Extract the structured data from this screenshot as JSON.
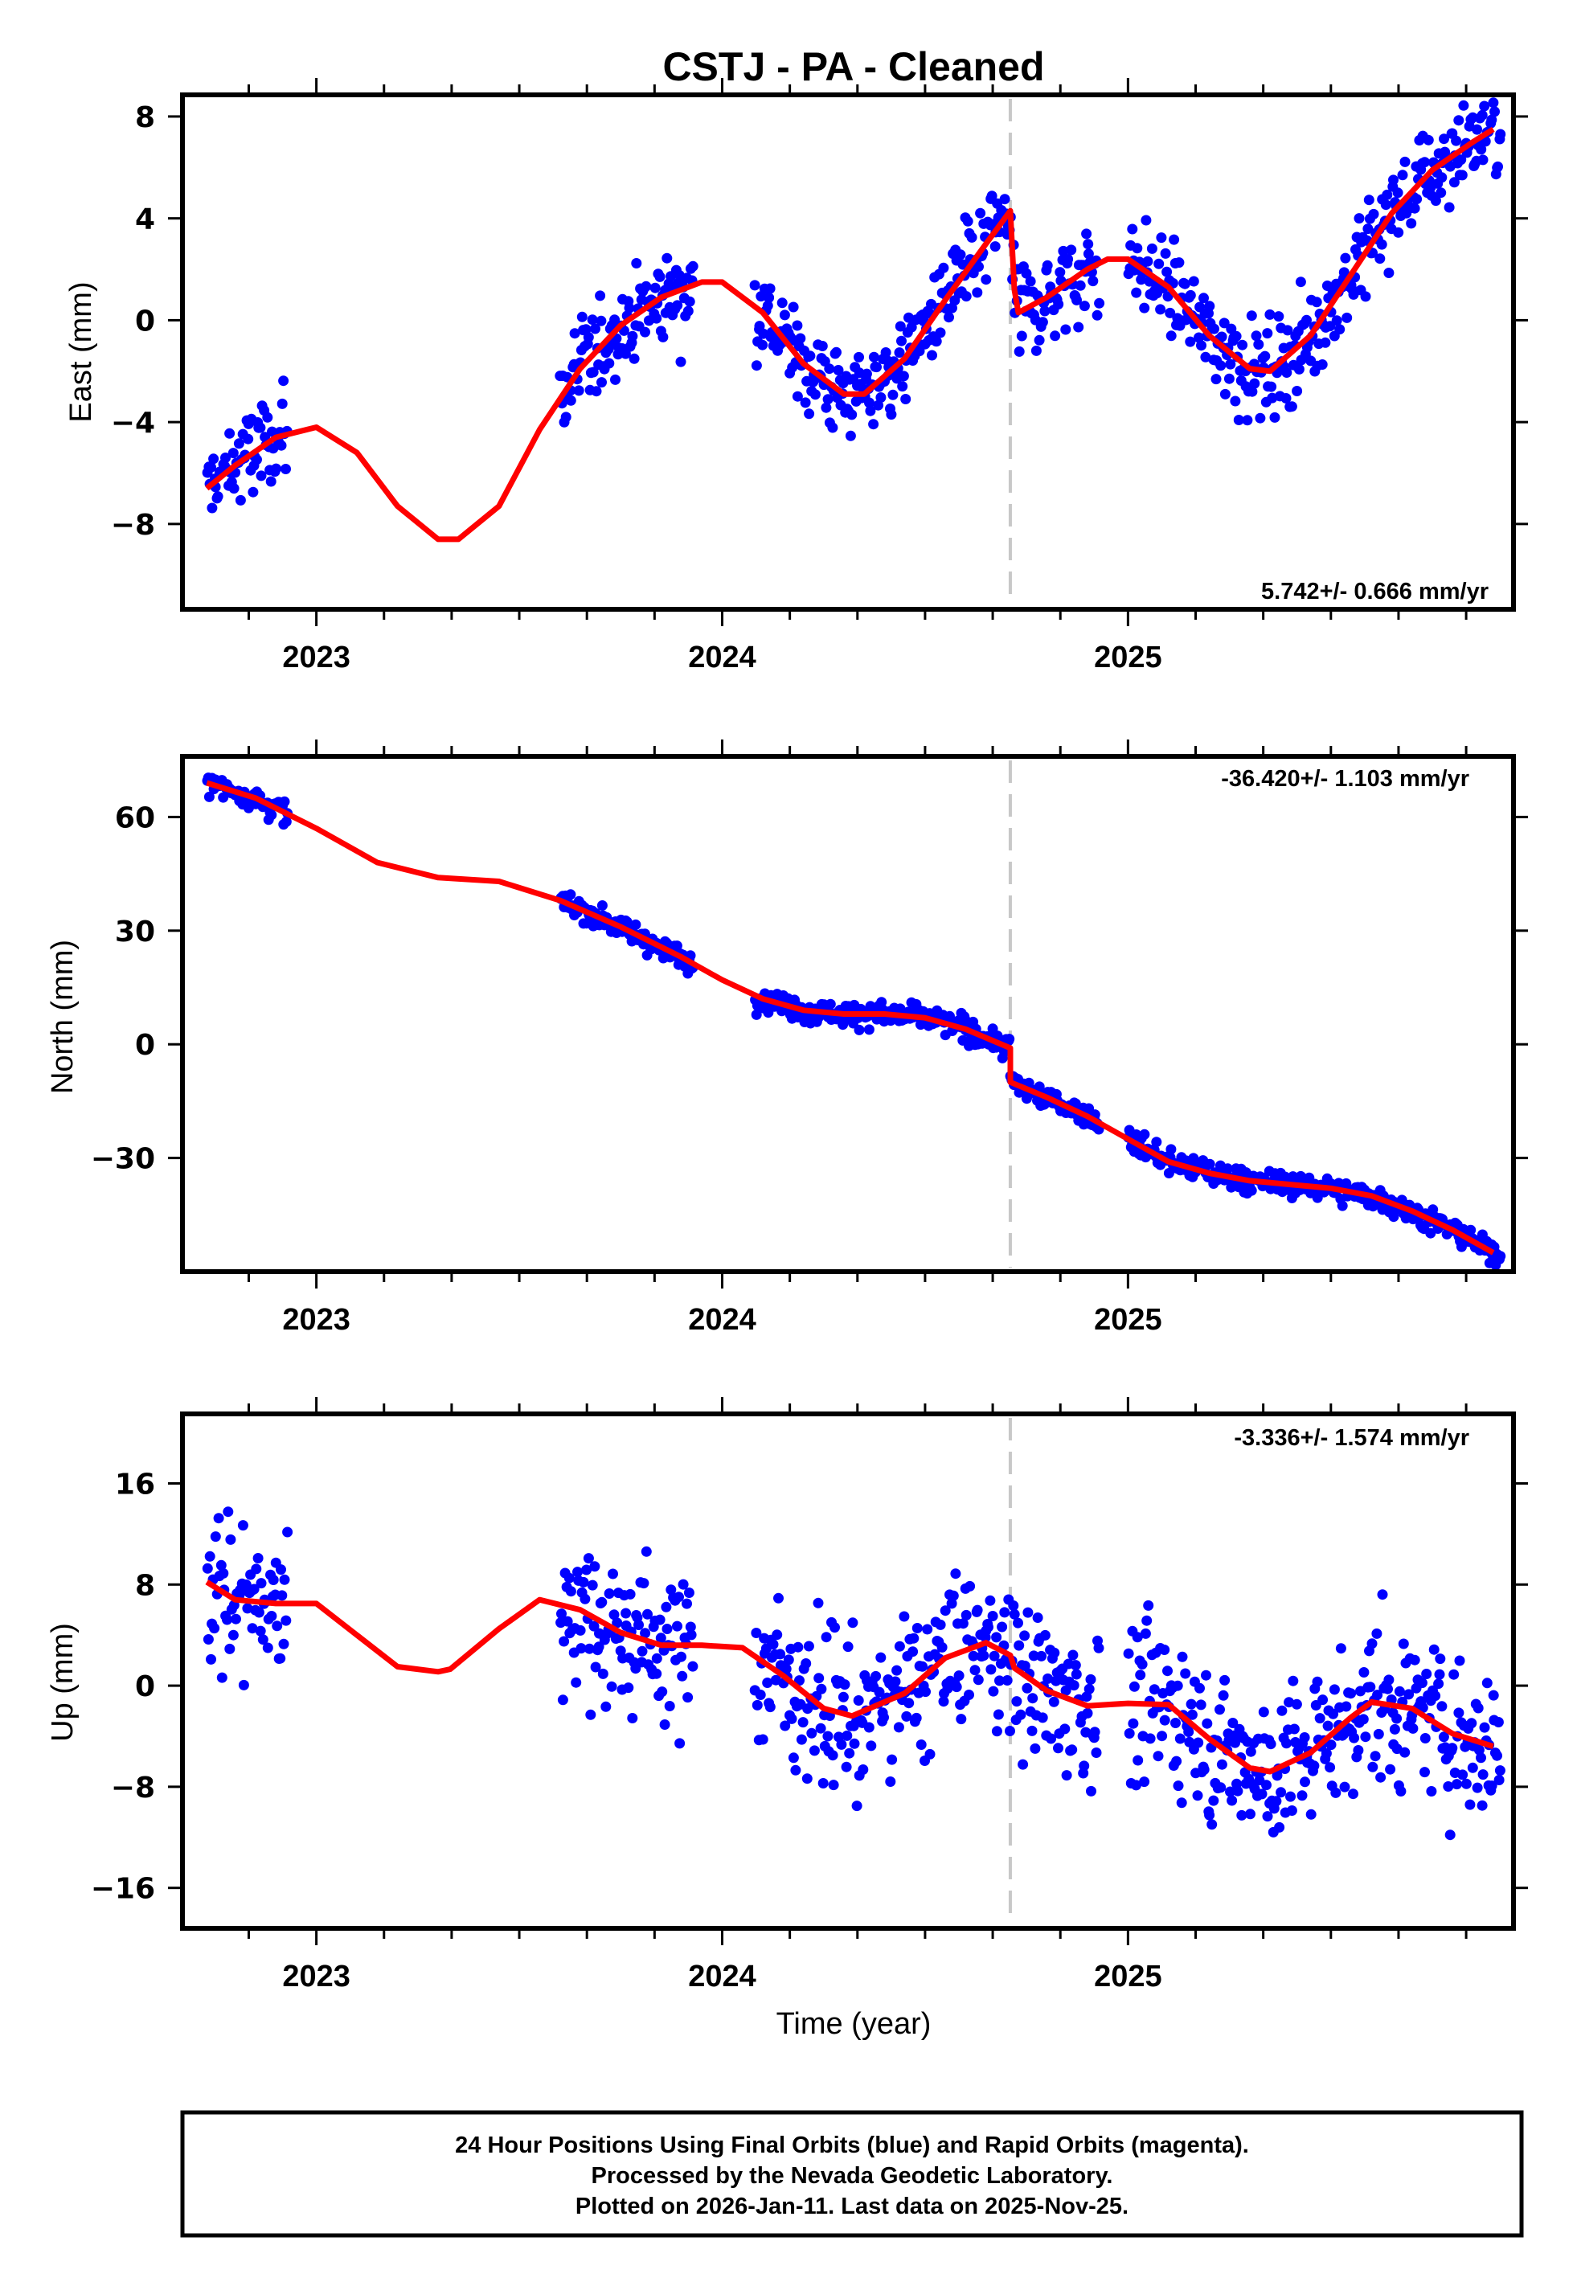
{
  "title": "CSTJ  - PA - Cleaned",
  "colors": {
    "final_orbits": "#0000ff",
    "model_fit": "#ff0000",
    "event_line": "#c8c8c8",
    "frame": "#000000"
  },
  "footer": {
    "lines": [
      "24 Hour Positions Using Final Orbits (blue) and Rapid Orbits (magenta).",
      "Processed by the Nevada Geodetic Laboratory.",
      "Plotted on 2026-Jan-11. Last data on 2025-Nov-25."
    ]
  },
  "chart_data": [
    {
      "type": "scatter",
      "component": "east",
      "ylabel": "East (mm)",
      "xlabel": "",
      "xlim": [
        2022.67,
        2025.95
      ],
      "ylim": [
        -11.35,
        8.85
      ],
      "xticks": [
        2023,
        2024,
        2025
      ],
      "xtick_labels": [
        "2023",
        "2024",
        "2025"
      ],
      "yticks": [
        8,
        4,
        0,
        -4,
        -8
      ],
      "ytick_labels": [
        "8",
        "4",
        "0",
        "−4",
        "−8"
      ],
      "rate_label": "5.742+/- 0.666 mm/yr",
      "rate_position": "bottom-right",
      "event_x": 2024.71,
      "data_ranges": [
        [
          2022.73,
          2022.93
        ],
        [
          2023.6,
          2023.93
        ],
        [
          2024.08,
          2024.71
        ],
        [
          2024.71,
          2024.93
        ],
        [
          2025.0,
          2025.92
        ]
      ],
      "fit": {
        "x": [
          2022.73,
          2022.8,
          2022.9,
          2023.0,
          2023.1,
          2023.2,
          2023.3,
          2023.35,
          2023.45,
          2023.55,
          2023.65,
          2023.75,
          2023.85,
          2023.95,
          2024.0,
          2024.1,
          2024.2,
          2024.3,
          2024.35,
          2024.45,
          2024.55,
          2024.65,
          2024.71,
          2024.72,
          2024.73,
          2024.8,
          2024.9,
          2024.95,
          2025.0,
          2025.1,
          2025.2,
          2025.3,
          2025.35,
          2025.45,
          2025.55,
          2025.65,
          2025.75,
          2025.85,
          2025.9
        ],
        "y": [
          -6.6,
          -5.7,
          -4.6,
          -4.2,
          -5.2,
          -7.3,
          -8.6,
          -8.6,
          -7.3,
          -4.3,
          -1.9,
          -0.2,
          0.9,
          1.5,
          1.5,
          0.3,
          -1.7,
          -2.9,
          -2.9,
          -1.5,
          0.8,
          3.0,
          4.3,
          1.2,
          0.3,
          0.9,
          2.0,
          2.4,
          2.4,
          1.3,
          -0.6,
          -1.9,
          -2.0,
          -0.6,
          1.8,
          4.2,
          5.9,
          7.0,
          7.5
        ]
      }
    },
    {
      "type": "scatter",
      "component": "north",
      "ylabel": "North (mm)",
      "xlabel": "",
      "xlim": [
        2022.67,
        2025.95
      ],
      "ylim": [
        -60.0,
        76.0
      ],
      "xticks": [
        2023,
        2024,
        2025
      ],
      "xtick_labels": [
        "2023",
        "2024",
        "2025"
      ],
      "yticks": [
        60,
        30,
        0,
        -30
      ],
      "ytick_labels": [
        "60",
        "30",
        "0",
        "−30"
      ],
      "rate_label": "-36.420+/- 1.103 mm/yr",
      "rate_position": "top-right",
      "event_x": 2024.71,
      "data_ranges": [
        [
          2022.73,
          2022.93
        ],
        [
          2023.6,
          2023.93
        ],
        [
          2024.08,
          2024.71
        ],
        [
          2024.71,
          2024.93
        ],
        [
          2025.0,
          2025.92
        ]
      ],
      "fit": {
        "x": [
          2022.73,
          2022.85,
          2023.0,
          2023.15,
          2023.3,
          2023.45,
          2023.6,
          2023.75,
          2023.9,
          2024.0,
          2024.1,
          2024.2,
          2024.3,
          2024.4,
          2024.5,
          2024.6,
          2024.71,
          2024.71,
          2024.8,
          2024.9,
          2025.0,
          2025.1,
          2025.2,
          2025.3,
          2025.4,
          2025.5,
          2025.6,
          2025.7,
          2025.8,
          2025.9
        ],
        "y": [
          69,
          65,
          57,
          48,
          44,
          43,
          38,
          31,
          23,
          17,
          12,
          9,
          8,
          8,
          7,
          4,
          -1,
          -10,
          -14,
          -19,
          -25,
          -31,
          -34,
          -36,
          -37,
          -38,
          -40,
          -44,
          -49,
          -55
        ]
      }
    },
    {
      "type": "scatter",
      "component": "up",
      "ylabel": "Up (mm)",
      "xlabel": "Time (year)",
      "xlim": [
        2022.67,
        2025.95
      ],
      "ylim": [
        -19.2,
        21.5
      ],
      "xticks": [
        2023,
        2024,
        2025
      ],
      "xtick_labels": [
        "2023",
        "2024",
        "2025"
      ],
      "yticks": [
        16,
        8,
        0,
        -8,
        -16
      ],
      "ytick_labels": [
        "16",
        "8",
        "0",
        "−8",
        "−16"
      ],
      "rate_label": "-3.336+/- 1.574 mm/yr",
      "rate_position": "top-right",
      "event_x": 2024.71,
      "data_ranges": [
        [
          2022.73,
          2022.93
        ],
        [
          2023.6,
          2023.93
        ],
        [
          2024.08,
          2024.71
        ],
        [
          2024.71,
          2024.93
        ],
        [
          2025.0,
          2025.92
        ]
      ],
      "fit": {
        "x": [
          2022.73,
          2022.8,
          2022.9,
          2023.0,
          2023.1,
          2023.2,
          2023.3,
          2023.33,
          2023.45,
          2023.55,
          2023.65,
          2023.75,
          2023.85,
          2023.95,
          2024.05,
          2024.15,
          2024.25,
          2024.32,
          2024.45,
          2024.55,
          2024.65,
          2024.71,
          2024.72,
          2024.8,
          2024.9,
          2025.0,
          2025.1,
          2025.2,
          2025.3,
          2025.35,
          2025.45,
          2025.55,
          2025.6,
          2025.7,
          2025.8,
          2025.9
        ],
        "y": [
          8.2,
          6.8,
          6.5,
          6.5,
          4.0,
          1.5,
          1.1,
          1.3,
          4.5,
          6.8,
          6.0,
          4.2,
          3.2,
          3.2,
          3.0,
          0.8,
          -1.8,
          -2.4,
          -0.6,
          2.2,
          3.4,
          2.4,
          1.4,
          -0.4,
          -1.6,
          -1.4,
          -1.5,
          -4.2,
          -6.5,
          -6.8,
          -5.3,
          -2.5,
          -1.3,
          -1.8,
          -3.8,
          -4.8
        ]
      }
    }
  ]
}
